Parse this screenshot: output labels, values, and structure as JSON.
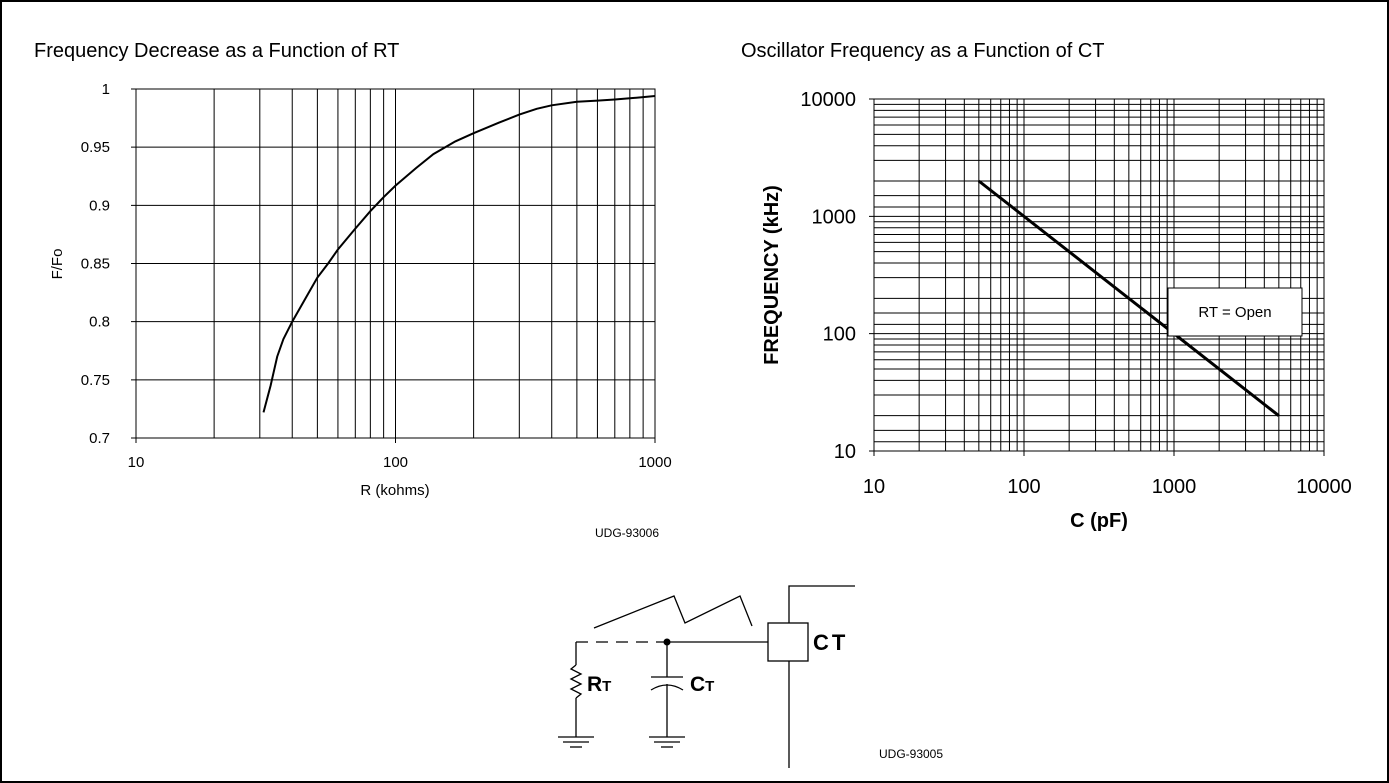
{
  "chart_data": [
    {
      "type": "line",
      "title": "Frequency Decrease as a Function of RT",
      "xlabel": "R (kohms)",
      "ylabel": "F/Fo",
      "x_scale": "log",
      "xlim": [
        10,
        1000
      ],
      "ylim": [
        0.7,
        1
      ],
      "x_ticks": [
        "10",
        "100",
        "1000"
      ],
      "y_ticks": [
        "0.7",
        "0.75",
        "0.8",
        "0.85",
        "0.9",
        "0.95",
        "1"
      ],
      "grid": true,
      "series": [
        {
          "x": [
            31,
            33,
            35,
            37,
            40,
            45,
            50,
            55,
            60,
            70,
            80,
            90,
            100,
            120,
            140,
            170,
            200,
            250,
            300,
            350,
            400,
            500,
            600,
            700,
            800,
            900,
            1000
          ],
          "y": [
            0.722,
            0.745,
            0.77,
            0.785,
            0.8,
            0.82,
            0.838,
            0.85,
            0.862,
            0.88,
            0.895,
            0.907,
            0.917,
            0.932,
            0.944,
            0.955,
            0.962,
            0.971,
            0.978,
            0.983,
            0.986,
            0.989,
            0.99,
            0.991,
            0.992,
            0.993,
            0.994
          ]
        }
      ],
      "footnote": "UDG-93006"
    },
    {
      "type": "line",
      "title": "Oscillator Frequency as a Function of CT",
      "xlabel": "C (pF)",
      "ylabel": "FREQUENCY (kHz)",
      "x_scale": "log",
      "y_scale": "log",
      "xlim": [
        10,
        10000
      ],
      "ylim": [
        10,
        10000
      ],
      "x_ticks": [
        "10",
        "100",
        "1000",
        "10000"
      ],
      "y_ticks": [
        "10",
        "100",
        "1000",
        "10000"
      ],
      "grid": true,
      "series": [
        {
          "x": [
            50,
            5000
          ],
          "y": [
            2000,
            20
          ]
        }
      ],
      "annotation": "RT = Open"
    }
  ],
  "schematic": {
    "labels": {
      "rt_main": "R",
      "rt_sub": "T",
      "ct_main": "C",
      "ct_sub": "T",
      "pin": "CT"
    },
    "footnote": "UDG-93005"
  }
}
